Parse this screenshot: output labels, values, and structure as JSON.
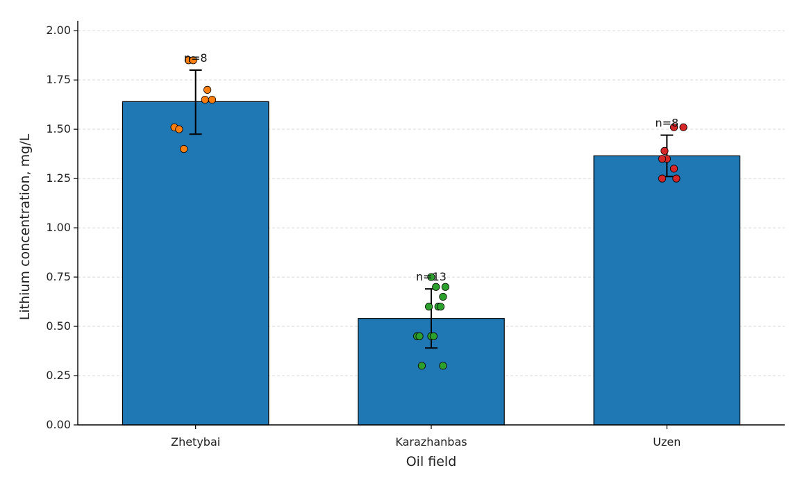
{
  "chart_data": {
    "type": "bar",
    "xlabel": "Oil field",
    "ylabel": "Lithium concentration, mg/L",
    "ylim": [
      0,
      2.05
    ],
    "yticks": [
      "0.00",
      "0.25",
      "0.50",
      "0.75",
      "1.00",
      "1.25",
      "1.50",
      "1.75",
      "2.00"
    ],
    "grid": "horizontal dashed",
    "categories": [
      "Zhetybai",
      "Karazhanbas",
      "Uzen"
    ],
    "values": [
      1.64,
      0.54,
      1.365
    ],
    "error_bars": [
      {
        "low": 1.475,
        "high": 1.8
      },
      {
        "low": 0.39,
        "high": 0.69
      },
      {
        "low": 1.26,
        "high": 1.47
      }
    ],
    "n_labels": [
      "n=8",
      "n=13",
      "n=8"
    ],
    "bar_color": "#1f77b4",
    "point_colors": [
      "#ff7f0e",
      "#2ca02c",
      "#d62728"
    ],
    "points": [
      [
        {
          "dx": -0.03,
          "y": 1.85
        },
        {
          "dx": -0.09,
          "y": 1.51
        },
        {
          "dx": -0.07,
          "y": 1.5
        },
        {
          "dx": -0.05,
          "y": 1.4
        },
        {
          "dx": 0.04,
          "y": 1.65
        },
        {
          "dx": 0.05,
          "y": 1.7
        },
        {
          "dx": 0.07,
          "y": 1.65
        },
        {
          "dx": -0.01,
          "y": 1.85
        }
      ],
      [
        {
          "dx": 0.0,
          "y": 0.75
        },
        {
          "dx": 0.02,
          "y": 0.7
        },
        {
          "dx": 0.06,
          "y": 0.7
        },
        {
          "dx": 0.05,
          "y": 0.65
        },
        {
          "dx": -0.01,
          "y": 0.6
        },
        {
          "dx": 0.03,
          "y": 0.6
        },
        {
          "dx": 0.04,
          "y": 0.6
        },
        {
          "dx": -0.06,
          "y": 0.45
        },
        {
          "dx": -0.05,
          "y": 0.45
        },
        {
          "dx": 0.0,
          "y": 0.45
        },
        {
          "dx": -0.04,
          "y": 0.3
        },
        {
          "dx": 0.05,
          "y": 0.3
        },
        {
          "dx": 0.01,
          "y": 0.45
        }
      ],
      [
        {
          "dx": 0.03,
          "y": 1.51
        },
        {
          "dx": 0.07,
          "y": 1.51
        },
        {
          "dx": -0.01,
          "y": 1.39
        },
        {
          "dx": 0.0,
          "y": 1.35
        },
        {
          "dx": -0.02,
          "y": 1.35
        },
        {
          "dx": 0.03,
          "y": 1.3
        },
        {
          "dx": -0.02,
          "y": 1.25
        },
        {
          "dx": 0.04,
          "y": 1.25
        }
      ]
    ]
  }
}
